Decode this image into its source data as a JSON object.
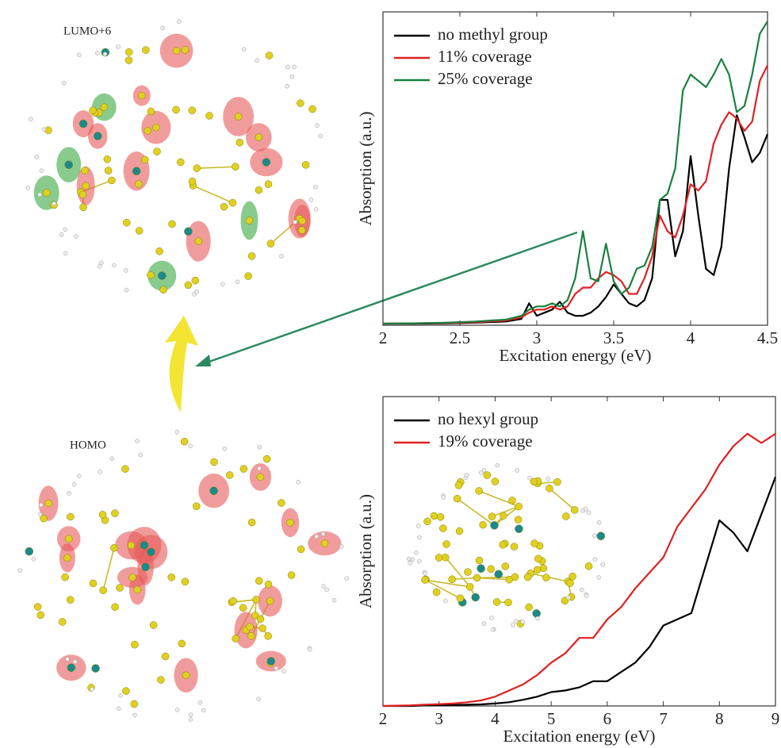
{
  "annotations": {
    "lumo": "LUMO+6",
    "homo": "HOMO"
  },
  "chart_data": [
    {
      "type": "line",
      "xlabel": "Excitation energy (eV)",
      "ylabel": "Absorption (a.u.)",
      "xlim": [
        2,
        4.5
      ],
      "xticks": [
        2,
        2.5,
        3,
        3.5,
        4,
        4.5
      ],
      "ylim": [
        0,
        1
      ],
      "x": [
        2.0,
        2.2,
        2.4,
        2.6,
        2.8,
        2.9,
        2.95,
        3.0,
        3.05,
        3.1,
        3.15,
        3.2,
        3.25,
        3.3,
        3.35,
        3.4,
        3.45,
        3.5,
        3.55,
        3.6,
        3.65,
        3.7,
        3.75,
        3.8,
        3.85,
        3.9,
        3.95,
        4.0,
        4.05,
        4.1,
        4.15,
        4.2,
        4.25,
        4.3,
        4.35,
        4.4,
        4.45,
        4.5
      ],
      "legend": "upper left",
      "series": [
        {
          "name": "no methyl group",
          "color": "#000000",
          "values": [
            0.005,
            0.005,
            0.006,
            0.008,
            0.012,
            0.02,
            0.07,
            0.03,
            0.04,
            0.05,
            0.075,
            0.04,
            0.03,
            0.03,
            0.04,
            0.06,
            0.09,
            0.13,
            0.1,
            0.07,
            0.06,
            0.08,
            0.15,
            0.4,
            0.4,
            0.22,
            0.3,
            0.54,
            0.35,
            0.18,
            0.16,
            0.25,
            0.5,
            0.67,
            0.6,
            0.52,
            0.55,
            0.61
          ]
        },
        {
          "name": "11% coverage",
          "color": "#e02020",
          "values": [
            0.005,
            0.006,
            0.007,
            0.01,
            0.015,
            0.025,
            0.04,
            0.05,
            0.05,
            0.06,
            0.05,
            0.06,
            0.1,
            0.12,
            0.12,
            0.15,
            0.17,
            0.16,
            0.14,
            0.1,
            0.1,
            0.15,
            0.22,
            0.35,
            0.3,
            0.28,
            0.35,
            0.45,
            0.43,
            0.46,
            0.58,
            0.64,
            0.68,
            0.66,
            0.62,
            0.65,
            0.78,
            0.83
          ]
        },
        {
          "name": "25% coverage",
          "color": "#1a8040",
          "values": [
            0.005,
            0.006,
            0.008,
            0.012,
            0.018,
            0.03,
            0.05,
            0.06,
            0.06,
            0.07,
            0.06,
            0.08,
            0.15,
            0.3,
            0.15,
            0.14,
            0.26,
            0.14,
            0.1,
            0.12,
            0.18,
            0.19,
            0.25,
            0.4,
            0.42,
            0.5,
            0.75,
            0.8,
            0.78,
            0.76,
            0.8,
            0.85,
            0.8,
            0.68,
            0.7,
            0.8,
            0.93,
            0.97
          ]
        }
      ]
    },
    {
      "type": "line",
      "xlabel": "Excitation energy (eV)",
      "ylabel": "Absorption (a.u.)",
      "xlim": [
        2,
        9
      ],
      "xticks": [
        2,
        3,
        4,
        5,
        6,
        7,
        8,
        9
      ],
      "ylim": [
        0,
        1
      ],
      "x": [
        2,
        2.25,
        2.5,
        2.75,
        3,
        3.25,
        3.5,
        3.75,
        4,
        4.25,
        4.5,
        4.75,
        5,
        5.25,
        5.5,
        5.75,
        6,
        6.25,
        6.5,
        6.75,
        7,
        7.25,
        7.5,
        7.75,
        8,
        8.25,
        8.5,
        8.75,
        9
      ],
      "legend": "upper left",
      "series": [
        {
          "name": "no hexyl group",
          "color": "#000000",
          "values": [
            0,
            0,
            0,
            0.002,
            0.003,
            0.003,
            0.004,
            0.005,
            0.008,
            0.012,
            0.02,
            0.03,
            0.045,
            0.05,
            0.06,
            0.08,
            0.08,
            0.11,
            0.14,
            0.19,
            0.26,
            0.28,
            0.3,
            0.45,
            0.6,
            0.56,
            0.5,
            0.62,
            0.74
          ]
        },
        {
          "name": "19% coverage",
          "color": "#e02020",
          "values": [
            0,
            0.001,
            0.002,
            0.004,
            0.006,
            0.008,
            0.012,
            0.018,
            0.03,
            0.05,
            0.07,
            0.1,
            0.14,
            0.17,
            0.22,
            0.22,
            0.28,
            0.32,
            0.38,
            0.43,
            0.48,
            0.58,
            0.64,
            0.7,
            0.78,
            0.84,
            0.88,
            0.85,
            0.88
          ]
        }
      ]
    }
  ]
}
